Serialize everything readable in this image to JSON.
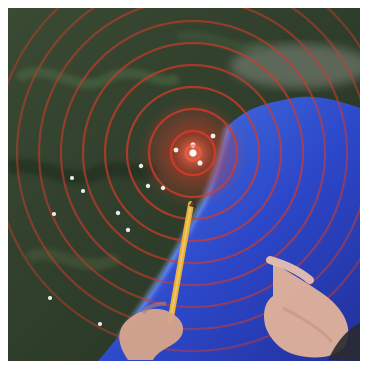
{
  "scene": {
    "colors": {
      "border": "#ffffff",
      "land": "#2f3d2b",
      "land_dark": "#1f2b1d",
      "land_light": "#4a5b3a",
      "sea": "#2c47c9",
      "sea_light": "#4b7de6",
      "ring": "#d23b2a",
      "ring_glow": "#ff5a3d",
      "pencil": "#e9b13a",
      "hand": "#d7a58b"
    },
    "icons": {
      "epicenter": "epicenter-icon",
      "city_marker": "city-marker-icon",
      "pencil": "pencil-icon",
      "hand": "hand-icon"
    },
    "rings": {
      "count": 9
    }
  }
}
